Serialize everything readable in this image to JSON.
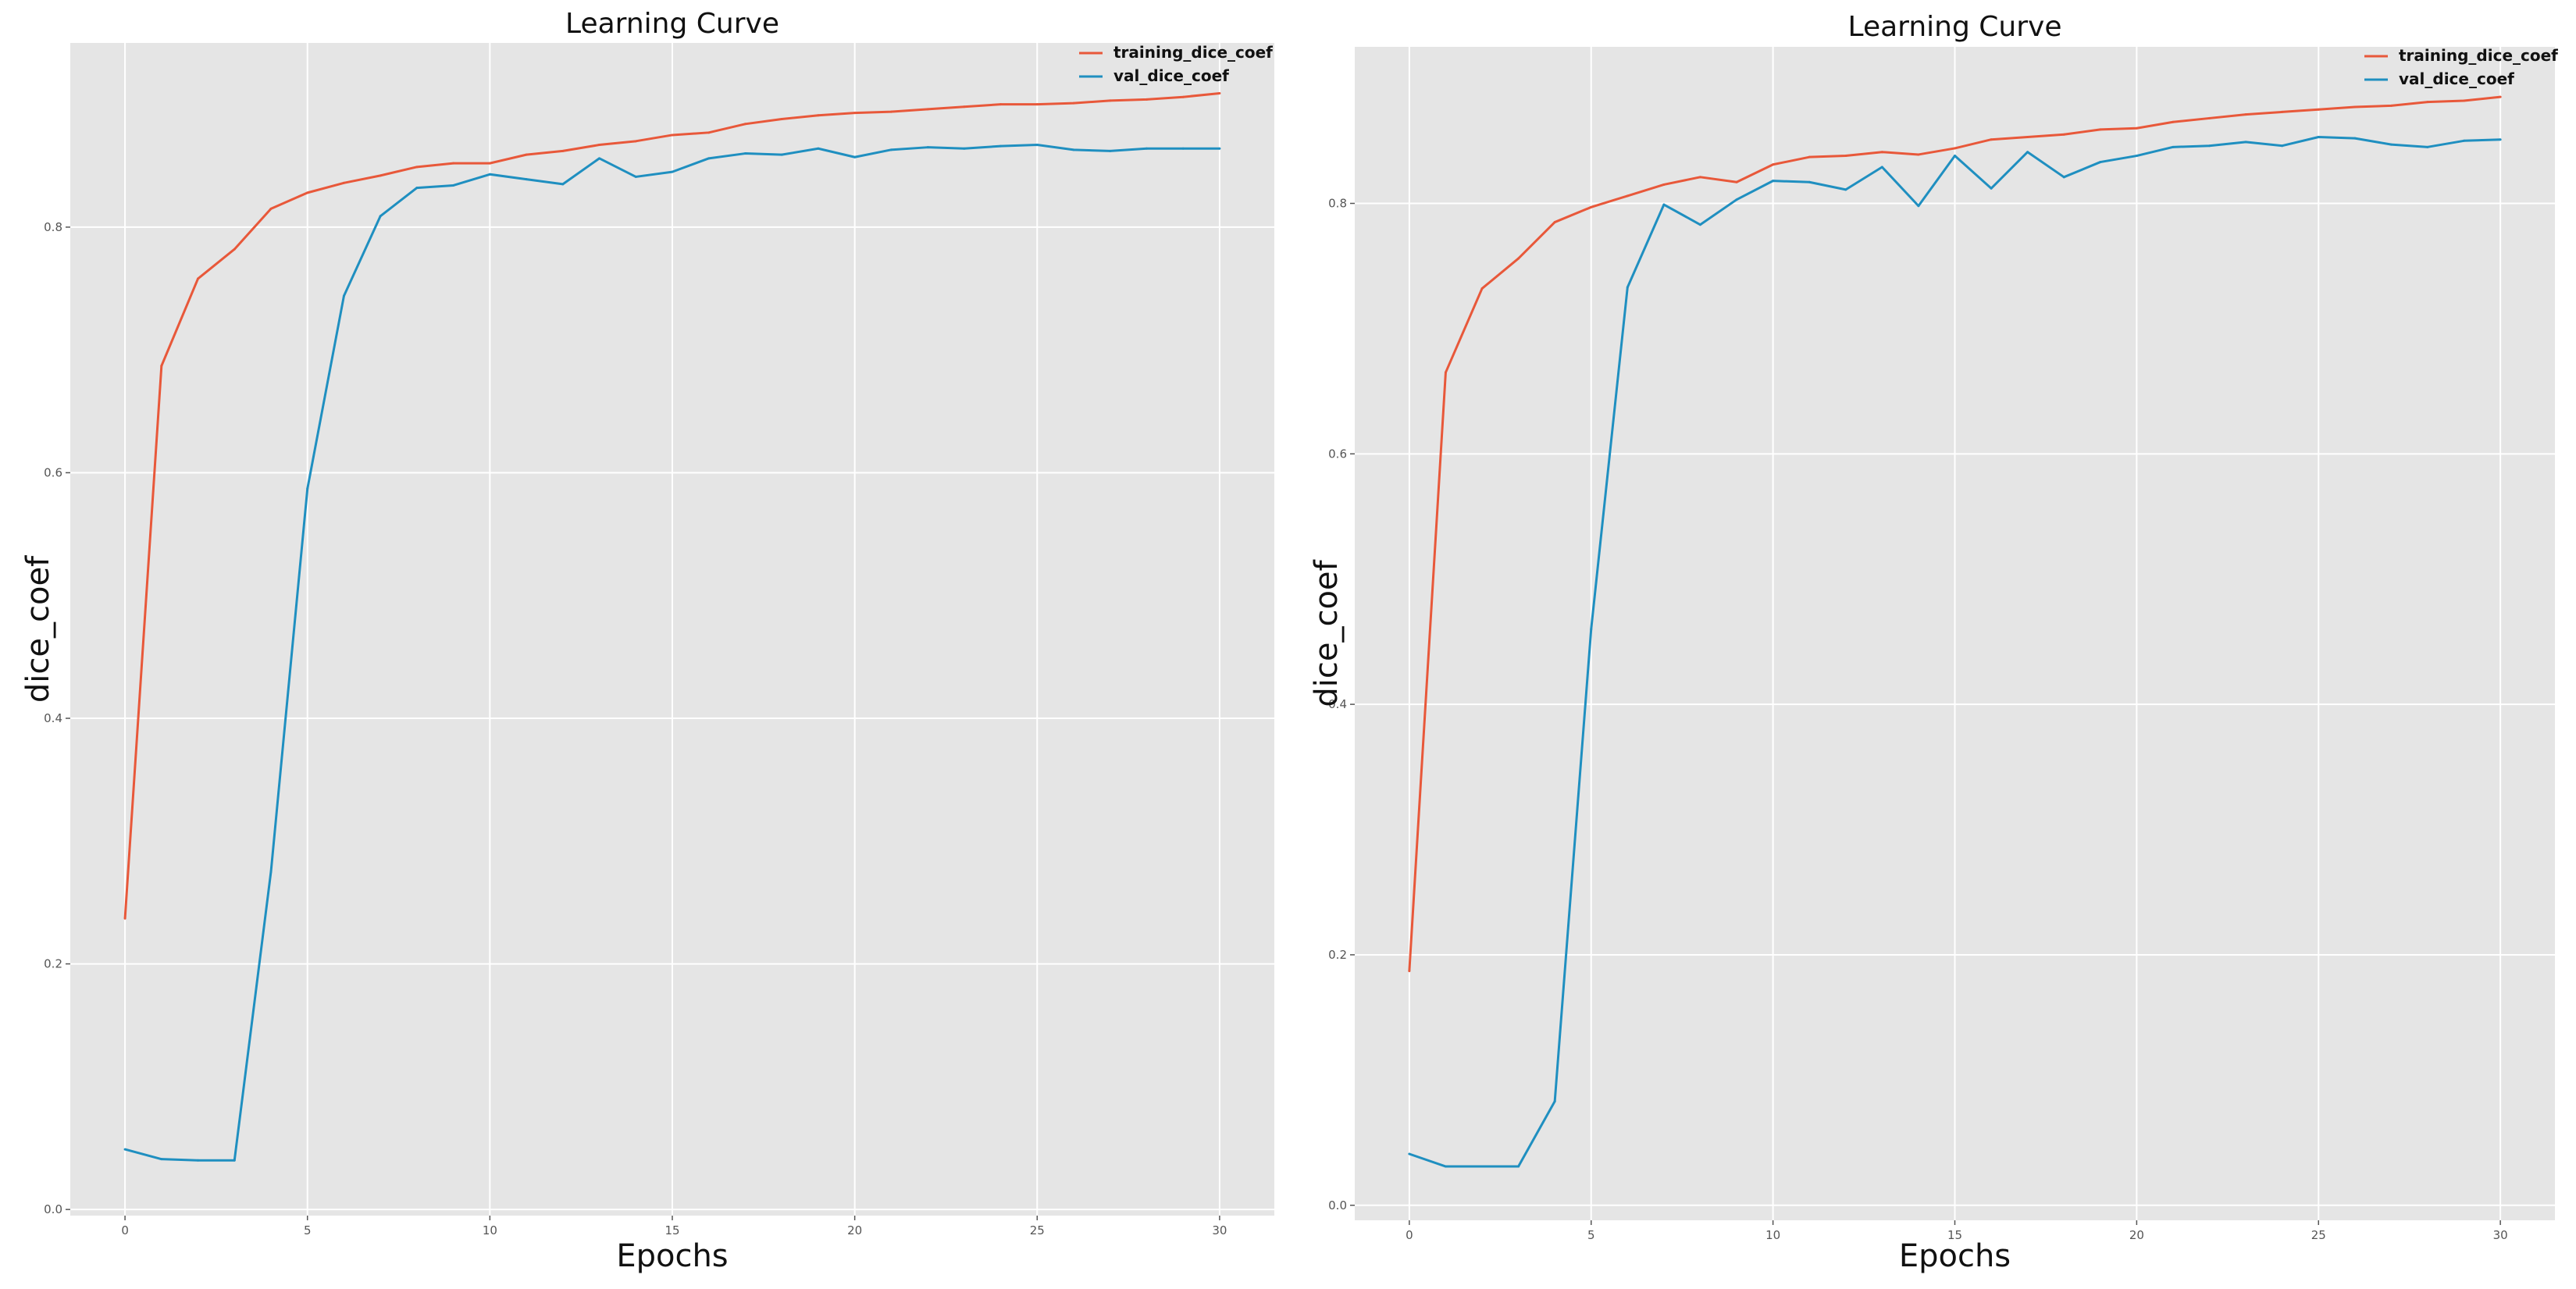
{
  "chart_data": [
    {
      "type": "line",
      "title": "Learning Curve",
      "xlabel": "Epochs",
      "ylabel": "dice_coef",
      "xlim": [
        -1.5,
        31.5
      ],
      "ylim": [
        -0.005,
        0.95
      ],
      "xticks": [
        0,
        5,
        10,
        15,
        20,
        25,
        30
      ],
      "xtick_labels": [
        "0",
        "5",
        "10",
        "15",
        "20",
        "25",
        "30"
      ],
      "yticks": [
        0.0,
        0.2,
        0.4,
        0.6,
        0.8
      ],
      "ytick_labels": [
        "0.0",
        "0.2",
        "0.4",
        "0.6",
        "0.8"
      ],
      "grid": true,
      "legend_position": "top-right",
      "x": [
        0,
        1,
        2,
        3,
        4,
        5,
        6,
        7,
        8,
        9,
        10,
        11,
        12,
        13,
        14,
        15,
        16,
        17,
        18,
        19,
        20,
        21,
        22,
        23,
        24,
        25,
        26,
        27,
        28,
        29,
        30
      ],
      "series": [
        {
          "name": "training_dice_coef",
          "color": "#e8583a",
          "values": [
            0.237,
            0.687,
            0.758,
            0.782,
            0.815,
            0.828,
            0.836,
            0.842,
            0.849,
            0.852,
            0.852,
            0.859,
            0.862,
            0.867,
            0.87,
            0.875,
            0.877,
            0.884,
            0.888,
            0.891,
            0.893,
            0.894,
            0.896,
            0.898,
            0.9,
            0.9,
            0.901,
            0.903,
            0.904,
            0.906,
            0.909
          ]
        },
        {
          "name": "val_dice_coef",
          "color": "#1f8fc0",
          "values": [
            0.049,
            0.041,
            0.04,
            0.04,
            0.275,
            0.587,
            0.744,
            0.809,
            0.832,
            0.834,
            0.843,
            0.839,
            0.835,
            0.856,
            0.841,
            0.845,
            0.856,
            0.86,
            0.859,
            0.864,
            0.857,
            0.863,
            0.865,
            0.864,
            0.866,
            0.867,
            0.863,
            0.862,
            0.864,
            0.864,
            0.864
          ]
        }
      ]
    },
    {
      "type": "line",
      "title": "Learning Curve",
      "xlabel": "Epochs",
      "ylabel": "dice_coef",
      "xlim": [
        -1.5,
        31.5
      ],
      "ylim": [
        -0.012,
        0.925
      ],
      "xticks": [
        0,
        5,
        10,
        15,
        20,
        25,
        30
      ],
      "xtick_labels": [
        "0",
        "5",
        "10",
        "15",
        "20",
        "25",
        "30"
      ],
      "yticks": [
        0.0,
        0.2,
        0.4,
        0.6,
        0.8
      ],
      "ytick_labels": [
        "0.0",
        "0.2",
        "0.4",
        "0.6",
        "0.8"
      ],
      "grid": true,
      "legend_position": "top-right",
      "x": [
        0,
        1,
        2,
        3,
        4,
        5,
        6,
        7,
        8,
        9,
        10,
        11,
        12,
        13,
        14,
        15,
        16,
        17,
        18,
        19,
        20,
        21,
        22,
        23,
        24,
        25,
        26,
        27,
        28,
        29,
        30
      ],
      "series": [
        {
          "name": "training_dice_coef",
          "color": "#e8583a",
          "values": [
            0.187,
            0.665,
            0.732,
            0.756,
            0.785,
            0.797,
            0.806,
            0.815,
            0.821,
            0.817,
            0.831,
            0.837,
            0.838,
            0.841,
            0.839,
            0.844,
            0.851,
            0.853,
            0.855,
            0.859,
            0.86,
            0.865,
            0.868,
            0.871,
            0.873,
            0.875,
            0.877,
            0.878,
            0.881,
            0.882,
            0.885
          ]
        },
        {
          "name": "val_dice_coef",
          "color": "#1f8fc0",
          "values": [
            0.041,
            0.031,
            0.031,
            0.031,
            0.083,
            0.46,
            0.733,
            0.799,
            0.783,
            0.803,
            0.818,
            0.817,
            0.811,
            0.829,
            0.798,
            0.838,
            0.812,
            0.841,
            0.821,
            0.833,
            0.838,
            0.845,
            0.846,
            0.849,
            0.846,
            0.853,
            0.852,
            0.847,
            0.845,
            0.85,
            0.851
          ]
        }
      ]
    }
  ]
}
